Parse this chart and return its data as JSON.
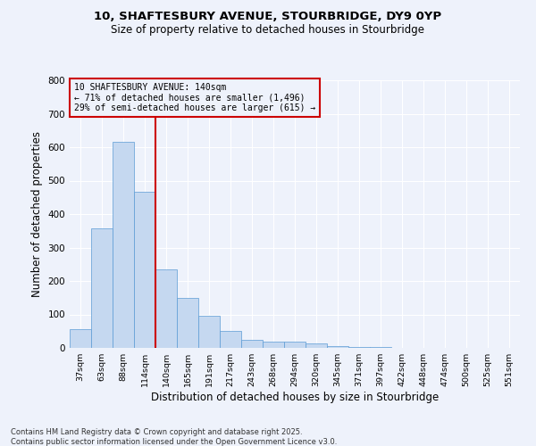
{
  "title_line1": "10, SHAFTESBURY AVENUE, STOURBRIDGE, DY9 0YP",
  "title_line2": "Size of property relative to detached houses in Stourbridge",
  "xlabel": "Distribution of detached houses by size in Stourbridge",
  "ylabel": "Number of detached properties",
  "footer_line1": "Contains HM Land Registry data © Crown copyright and database right 2025.",
  "footer_line2": "Contains public sector information licensed under the Open Government Licence v3.0.",
  "annotation_line1": "10 SHAFTESBURY AVENUE: 140sqm",
  "annotation_line2": "← 71% of detached houses are smaller (1,496)",
  "annotation_line3": "29% of semi-detached houses are larger (615) →",
  "bar_color": "#c5d8f0",
  "bar_edge_color": "#5b9bd5",
  "red_line_color": "#cc0000",
  "annotation_box_color": "#cc0000",
  "background_color": "#eef2fb",
  "grid_color": "#ffffff",
  "categories": [
    "37sqm",
    "63sqm",
    "88sqm",
    "114sqm",
    "140sqm",
    "165sqm",
    "191sqm",
    "217sqm",
    "243sqm",
    "268sqm",
    "294sqm",
    "320sqm",
    "345sqm",
    "371sqm",
    "397sqm",
    "422sqm",
    "448sqm",
    "474sqm",
    "500sqm",
    "525sqm",
    "551sqm"
  ],
  "values": [
    57,
    358,
    617,
    468,
    235,
    150,
    97,
    50,
    25,
    20,
    20,
    13,
    5,
    2,
    2,
    1,
    0,
    0,
    0,
    0,
    0
  ],
  "red_line_x": 3.5,
  "ylim": [
    0,
    800
  ],
  "yticks": [
    0,
    100,
    200,
    300,
    400,
    500,
    600,
    700,
    800
  ]
}
